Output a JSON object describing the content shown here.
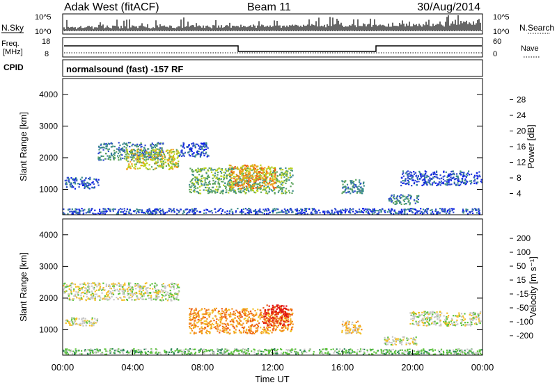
{
  "header": {
    "title": "Adak West (fitACF)",
    "beam": "Beam 11",
    "date": "30/Aug/2014"
  },
  "status_panels": {
    "nsky_label": "N.Sky",
    "nsky_ticks": [
      "10^5",
      "10^0"
    ],
    "nsearch_ticks": [
      "10^5",
      "10^0"
    ],
    "nsearch_label": "N.Search",
    "freq_label": "Freq.",
    "freq_unit": "[MHz]",
    "freq_ticks": [
      "18",
      "8"
    ],
    "nave_ticks": [
      "60",
      "0"
    ],
    "nave_label": "Nave",
    "cpid_label": "CPID",
    "cpid_text": "normalsound (fast) -157 RF"
  },
  "chart_data": [
    {
      "type": "heatmap",
      "name": "power",
      "ylabel": "Slant Range [km]",
      "yticks": [
        "1000",
        "2000",
        "3000",
        "4000"
      ],
      "ylim": [
        200,
        4500
      ],
      "xlim": [
        0,
        24
      ],
      "colorbar": {
        "label": "Power [dB]",
        "ticks": [
          "4",
          "8",
          "12",
          "16",
          "20",
          "24",
          "28"
        ],
        "colors": [
          "#0a1de6",
          "#2f4bd0",
          "#3a8a8a",
          "#5ea55e",
          "#b9d21e",
          "#f3a019",
          "#ea5a14",
          "#d71818"
        ]
      },
      "echo_regions": [
        {
          "t0": 2.0,
          "t1": 5.8,
          "r0": 1900,
          "r1": 2500,
          "level": 2
        },
        {
          "t0": 3.6,
          "t1": 6.7,
          "r0": 1600,
          "r1": 2300,
          "level": 4
        },
        {
          "t0": 6.6,
          "t1": 8.4,
          "r0": 2000,
          "r1": 2500,
          "level": 1
        },
        {
          "t0": 0.1,
          "t1": 2.1,
          "r0": 1000,
          "r1": 1400,
          "level": 1
        },
        {
          "t0": 7.2,
          "t1": 13.2,
          "r0": 850,
          "r1": 1700,
          "level": 3
        },
        {
          "t0": 9.5,
          "t1": 12.2,
          "r0": 1000,
          "r1": 1800,
          "level": 5
        },
        {
          "t0": 15.9,
          "t1": 17.3,
          "r0": 850,
          "r1": 1350,
          "level": 2
        },
        {
          "t0": 18.6,
          "t1": 20.4,
          "r0": 500,
          "r1": 850,
          "level": 2
        },
        {
          "t0": 19.3,
          "t1": 24.0,
          "r0": 1100,
          "r1": 1600,
          "level": 1
        },
        {
          "t0": 0.0,
          "t1": 24.0,
          "r0": 200,
          "r1": 420,
          "level": 1
        }
      ]
    },
    {
      "type": "heatmap",
      "name": "velocity",
      "ylabel": "Slant Range [km]",
      "yticks": [
        "1000",
        "2000",
        "3000",
        "4000"
      ],
      "ylim": [
        200,
        4500
      ],
      "xlim": [
        0,
        24
      ],
      "xlabel": "Time UT",
      "xticks": [
        "00:00",
        "04:00",
        "08:00",
        "12:00",
        "16:00",
        "20:00",
        "00:00"
      ],
      "colorbar": {
        "label": "Velocity [m s⁻¹]",
        "ticks": [
          "200",
          "100",
          "50",
          "15",
          "-15",
          "-50",
          "-100",
          "-200"
        ],
        "colors": [
          "#2233c6",
          "#3d6fb5",
          "#2f8a57",
          "#5bc23c",
          "#c8c8c8",
          "#f3c02a",
          "#f3901e",
          "#ec5a14",
          "#e11414"
        ]
      },
      "echo_regions": [
        {
          "t0": 0.0,
          "t1": 6.7,
          "r0": 1900,
          "r1": 2500,
          "level": 4
        },
        {
          "t0": 0.1,
          "t1": 2.1,
          "r0": 1100,
          "r1": 1400,
          "level": 4
        },
        {
          "t0": 7.2,
          "t1": 13.2,
          "r0": 850,
          "r1": 1700,
          "level": 6
        },
        {
          "t0": 11.4,
          "t1": 13.0,
          "r0": 1100,
          "r1": 1800,
          "level": 8
        },
        {
          "t0": 15.9,
          "t1": 17.2,
          "r0": 850,
          "r1": 1300,
          "level": 5
        },
        {
          "t0": 18.3,
          "t1": 20.3,
          "r0": 500,
          "r1": 800,
          "level": 4
        },
        {
          "t0": 19.8,
          "t1": 24.0,
          "r0": 1100,
          "r1": 1600,
          "level": 4
        },
        {
          "t0": 0.0,
          "t1": 24.0,
          "r0": 200,
          "r1": 420,
          "level": 3
        }
      ]
    }
  ]
}
